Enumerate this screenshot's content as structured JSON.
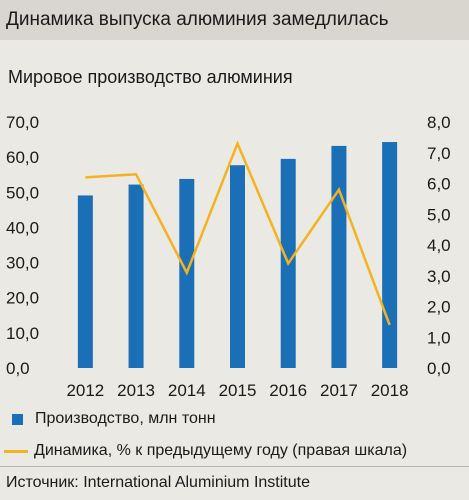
{
  "header": {
    "title": "Динамика выпуска алюминия замедлилась"
  },
  "subtitle": "Мировое производство алюминия",
  "legend": {
    "bars": "Производство, млн тонн",
    "line": "Динамика, % к предыдущему году (правая шкала)"
  },
  "source": "Источник: International Aluminium Institute",
  "colors": {
    "bar": "#1b6fb6",
    "line": "#f3b321",
    "header_bg": "#d9d6cf",
    "panel_bg": "#ebe9e3"
  },
  "chart_data": {
    "type": "bar",
    "title": "Мировое производство алюминия",
    "categories": [
      "2012",
      "2013",
      "2014",
      "2015",
      "2016",
      "2017",
      "2018"
    ],
    "series": [
      {
        "name": "Производство, млн тонн",
        "type": "bar",
        "axis": "left",
        "values": [
          49.1,
          52.2,
          53.8,
          57.7,
          59.5,
          63.2,
          64.3
        ]
      },
      {
        "name": "Динамика, % к предыдущему году (правая шкала)",
        "type": "line",
        "axis": "right",
        "values": [
          6.2,
          6.3,
          3.1,
          7.3,
          3.4,
          5.8,
          1.4
        ]
      }
    ],
    "ylim_left": [
      0,
      70
    ],
    "ylim_right": [
      0,
      8
    ],
    "left_ticks": [
      "0,0",
      "10,0",
      "20,0",
      "30,0",
      "40,0",
      "50,0",
      "60,0",
      "70,0"
    ],
    "right_ticks": [
      "0,0",
      "1,0",
      "2,0",
      "3,0",
      "4,0",
      "5,0",
      "6,0",
      "7,0",
      "8,0"
    ],
    "grid": false,
    "legend_position": "bottom"
  }
}
